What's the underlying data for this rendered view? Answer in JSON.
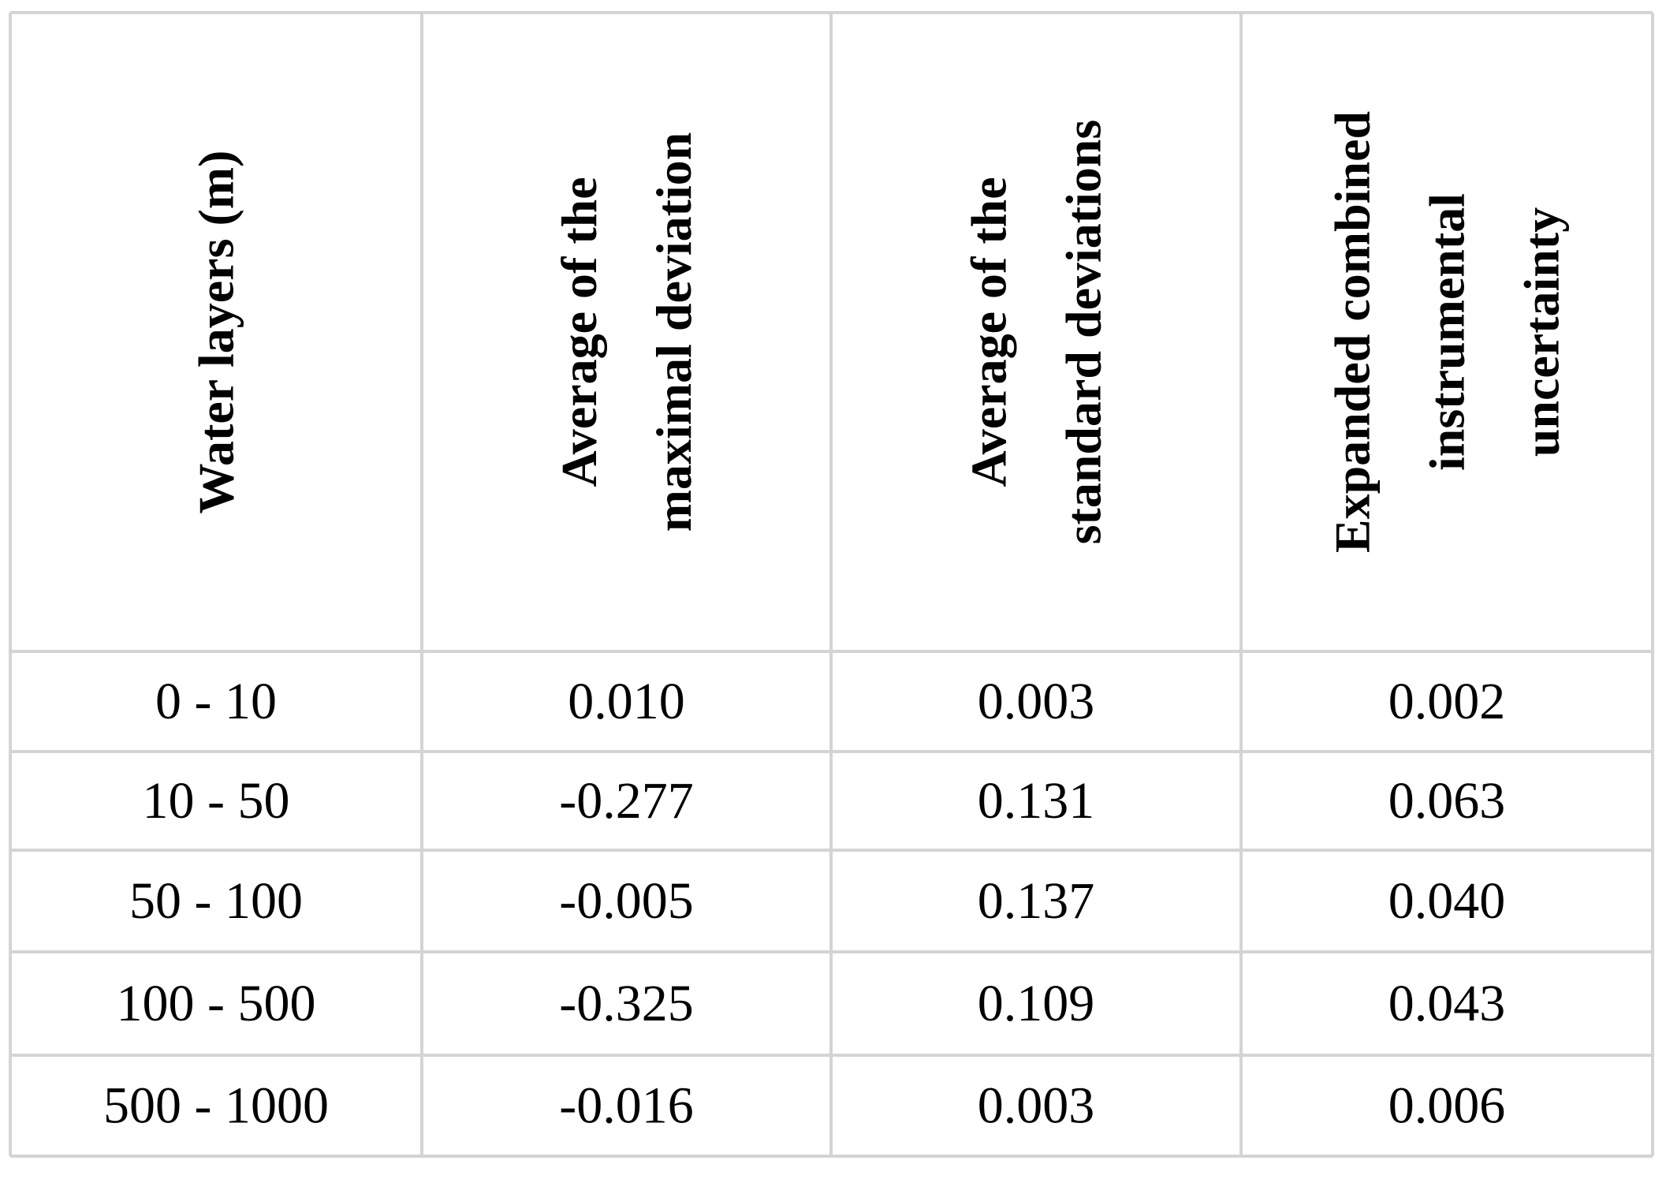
{
  "table": {
    "header": [
      [
        "Water layers (m)"
      ],
      [
        "Average of the",
        "maximal deviation"
      ],
      [
        "Average of the",
        "standard deviations"
      ],
      [
        "Expanded combined",
        "instrumental",
        "uncertainty"
      ]
    ],
    "rows": [
      [
        "0 - 10",
        "0.010",
        "0.003",
        "0.002"
      ],
      [
        "10 - 50",
        "-0.277",
        "0.131",
        "0.063"
      ],
      [
        "50 - 100",
        "-0.005",
        "0.137",
        "0.040"
      ],
      [
        "100 - 500",
        "-0.325",
        "0.109",
        "0.043"
      ],
      [
        "500 - 1000",
        "-0.016",
        "0.003",
        "0.006"
      ]
    ]
  }
}
